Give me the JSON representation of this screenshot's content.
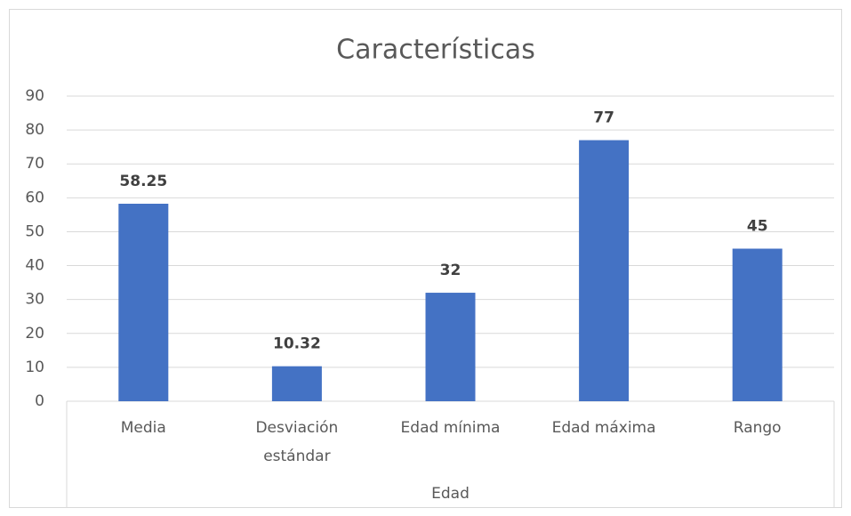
{
  "chart_data": {
    "type": "bar",
    "title": "Características",
    "categories": [
      "Media",
      "Desviación estándar",
      "Edad mínima",
      "Edad máxima",
      "Rango"
    ],
    "values": [
      58.25,
      10.32,
      32,
      77,
      45
    ],
    "group_label": "Edad",
    "color": "#4472c4",
    "ylim": [
      0,
      90
    ],
    "yticks": [
      0,
      10,
      20,
      30,
      40,
      50,
      60,
      70,
      80,
      90
    ],
    "grid": true
  }
}
